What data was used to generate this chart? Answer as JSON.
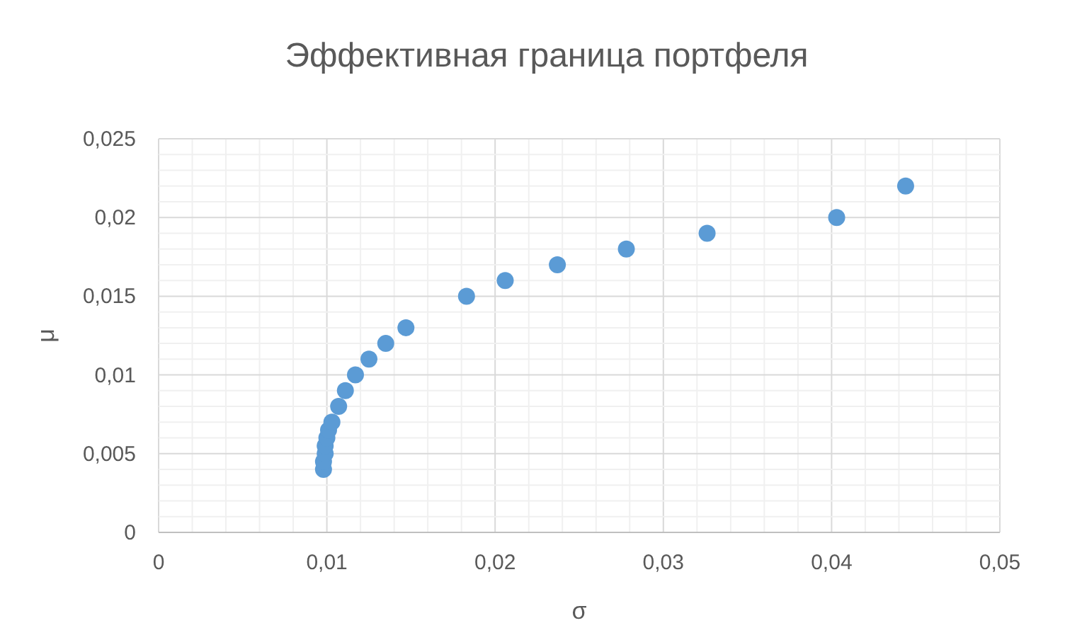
{
  "chart_data": {
    "type": "scatter",
    "title": "Эффективная граница портфеля",
    "xlabel": "σ",
    "ylabel": "μ",
    "x": [
      0.0098,
      0.0098,
      0.0099,
      0.0099,
      0.01,
      0.0101,
      0.0103,
      0.0107,
      0.0111,
      0.0117,
      0.0125,
      0.0135,
      0.0147,
      0.0183,
      0.0206,
      0.0237,
      0.0278,
      0.0326,
      0.0403,
      0.0444
    ],
    "values": [
      0.004,
      0.0045,
      0.005,
      0.0055,
      0.006,
      0.0065,
      0.007,
      0.008,
      0.009,
      0.01,
      0.011,
      0.012,
      0.013,
      0.015,
      0.016,
      0.017,
      0.018,
      0.019,
      0.02,
      0.022
    ],
    "color": "#5b9bd5",
    "marker": "circle",
    "grid": true,
    "xlim": [
      0,
      0.05
    ],
    "ylim": [
      0,
      0.025
    ],
    "xticks": [
      {
        "value": 0,
        "label": "0"
      },
      {
        "value": 0.002,
        "label": null
      },
      {
        "value": 0.004,
        "label": null
      },
      {
        "value": 0.006,
        "label": null
      },
      {
        "value": 0.008,
        "label": null
      },
      {
        "value": 0.01,
        "label": "0,01"
      },
      {
        "value": 0.012,
        "label": null
      },
      {
        "value": 0.014,
        "label": null
      },
      {
        "value": 0.016,
        "label": null
      },
      {
        "value": 0.018,
        "label": null
      },
      {
        "value": 0.02,
        "label": "0,02"
      },
      {
        "value": 0.022,
        "label": null
      },
      {
        "value": 0.024,
        "label": null
      },
      {
        "value": 0.026,
        "label": null
      },
      {
        "value": 0.028,
        "label": null
      },
      {
        "value": 0.03,
        "label": "0,03"
      },
      {
        "value": 0.032,
        "label": null
      },
      {
        "value": 0.034,
        "label": null
      },
      {
        "value": 0.036,
        "label": null
      },
      {
        "value": 0.038,
        "label": null
      },
      {
        "value": 0.04,
        "label": "0,04"
      },
      {
        "value": 0.042,
        "label": null
      },
      {
        "value": 0.044,
        "label": null
      },
      {
        "value": 0.046,
        "label": null
      },
      {
        "value": 0.048,
        "label": null
      },
      {
        "value": 0.05,
        "label": "0,05"
      }
    ],
    "yticks": [
      {
        "value": 0,
        "label": "0"
      },
      {
        "value": 0.001,
        "label": null
      },
      {
        "value": 0.002,
        "label": null
      },
      {
        "value": 0.003,
        "label": null
      },
      {
        "value": 0.004,
        "label": null
      },
      {
        "value": 0.005,
        "label": "0,005"
      },
      {
        "value": 0.006,
        "label": null
      },
      {
        "value": 0.007,
        "label": null
      },
      {
        "value": 0.008,
        "label": null
      },
      {
        "value": 0.009,
        "label": null
      },
      {
        "value": 0.01,
        "label": "0,01"
      },
      {
        "value": 0.011,
        "label": null
      },
      {
        "value": 0.012,
        "label": null
      },
      {
        "value": 0.013,
        "label": null
      },
      {
        "value": 0.014,
        "label": null
      },
      {
        "value": 0.015,
        "label": "0,015"
      },
      {
        "value": 0.016,
        "label": null
      },
      {
        "value": 0.017,
        "label": null
      },
      {
        "value": 0.018,
        "label": null
      },
      {
        "value": 0.019,
        "label": null
      },
      {
        "value": 0.02,
        "label": "0,02"
      },
      {
        "value": 0.021,
        "label": null
      },
      {
        "value": 0.022,
        "label": null
      },
      {
        "value": 0.023,
        "label": null
      },
      {
        "value": 0.024,
        "label": null
      },
      {
        "value": 0.025,
        "label": "0,025"
      }
    ]
  }
}
